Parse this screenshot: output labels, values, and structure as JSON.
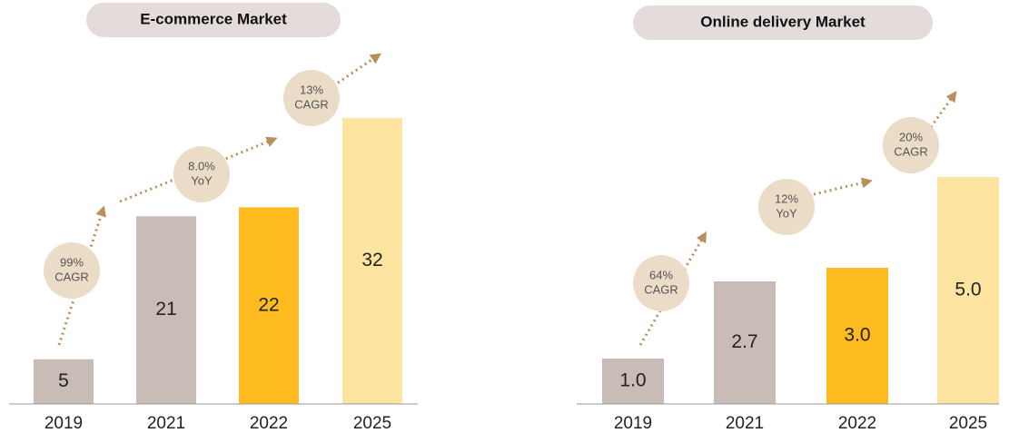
{
  "chart_data": [
    {
      "type": "bar",
      "title": "E-commerce Market",
      "categories": [
        "2019",
        "2021",
        "2022",
        "2025"
      ],
      "values": [
        5,
        21,
        22,
        32
      ],
      "colors": [
        "#c9bcb7",
        "#c9bcb7",
        "#fdbb1f",
        "#fde4a0"
      ],
      "annotations": [
        {
          "lines": [
            "99%",
            "CAGR"
          ]
        },
        {
          "lines": [
            "8.0%",
            "YoY"
          ]
        },
        {
          "lines": [
            "13%",
            "CAGR"
          ]
        }
      ]
    },
    {
      "type": "bar",
      "title": "Online delivery Market",
      "categories": [
        "2019",
        "2021",
        "2022",
        "2025"
      ],
      "values": [
        1,
        2.7,
        3,
        5
      ],
      "value_labels": [
        "1.0",
        "2.7",
        "3.0",
        "5.0"
      ],
      "colors": [
        "#c9bcb7",
        "#c9bcb7",
        "#fdbb1f",
        "#fde4a0"
      ],
      "annotations": [
        {
          "lines": [
            "64%",
            "CAGR"
          ]
        },
        {
          "lines": [
            "12%",
            "YoY"
          ]
        },
        {
          "lines": [
            "20%",
            "CAGR"
          ]
        }
      ]
    }
  ]
}
